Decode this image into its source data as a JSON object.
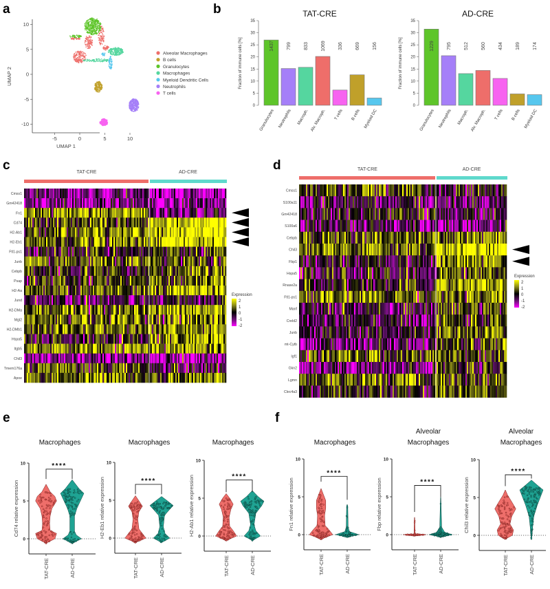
{
  "panel_labels": {
    "a": "a",
    "b": "b",
    "c": "c",
    "d": "d",
    "e": "e",
    "f": "f"
  },
  "chart_data": {
    "umap": {
      "type": "scatter",
      "xlabel": "UMAP 1",
      "ylabel": "UMAP 2",
      "xticks": [
        -5,
        0,
        5,
        10
      ],
      "yticks": [
        10,
        5,
        0,
        -5,
        -10
      ],
      "clusters": [
        {
          "name": "Alveolar Macrophages",
          "color": "#ee6e6a",
          "blobs": [
            [
              0,
              3.5,
              1.3,
              1.2,
              160
            ],
            [
              1.8,
              6.5,
              0.8,
              1.4,
              90
            ],
            [
              4.3,
              7.8,
              0.6,
              2,
              90
            ],
            [
              -0.8,
              7.2,
              1,
              0.3,
              30
            ],
            [
              5.2,
              5.3,
              0.6,
              0.5,
              40
            ]
          ]
        },
        {
          "name": "B cells",
          "color": "#c0a02a",
          "blobs": [
            [
              3.7,
              -2.5,
              0.8,
              1.1,
              160
            ]
          ]
        },
        {
          "name": "Granulocytes",
          "color": "#5ec52a",
          "blobs": [
            [
              2.6,
              9.6,
              1.7,
              1.7,
              360
            ],
            [
              -0.8,
              7.6,
              1.2,
              0.3,
              40
            ]
          ]
        },
        {
          "name": "Macrophages",
          "color": "#55d69f",
          "blobs": [
            [
              7.2,
              4.6,
              1.5,
              0.8,
              200
            ],
            [
              3.5,
              2.8,
              2.8,
              0.3,
              90
            ]
          ]
        },
        {
          "name": "Myeloid Dendritic Cells",
          "color": "#56c7ee",
          "blobs": [
            [
              6.1,
              2.3,
              0.35,
              1.4,
              60
            ],
            [
              4.8,
              4,
              0.5,
              0.3,
              20
            ]
          ]
        },
        {
          "name": "Neutrophils",
          "color": "#a57ff8",
          "blobs": [
            [
              10.8,
              -6.2,
              1.0,
              1.3,
              300
            ]
          ]
        },
        {
          "name": "T cells",
          "color": "#f763f0",
          "blobs": [
            [
              4.8,
              -9.6,
              0.8,
              0.7,
              160
            ]
          ]
        }
      ]
    },
    "bars": [
      {
        "type": "bar",
        "title": "TAT-CRE",
        "ylabel": "Fraction of immune cells [%]",
        "ylim": [
          0,
          35
        ],
        "yticks": [
          0,
          5,
          10,
          15,
          20,
          25,
          30,
          35
        ],
        "categories": [
          "Granulocytes",
          "Neutrophils",
          "Macroph.",
          "Alv. Macroph.",
          "T cells",
          "B cells",
          "Myeloid DC"
        ],
        "values": [
          27.0,
          15.2,
          15.7,
          20.2,
          6.3,
          12.6,
          3.0
        ],
        "counts": [
          "1437",
          "799",
          "833",
          "1069",
          "336",
          "669",
          "156"
        ],
        "colors": [
          "#5ec52a",
          "#a57ff8",
          "#55d69f",
          "#ee6e6a",
          "#f763f0",
          "#c0a02a",
          "#56c7ee"
        ]
      },
      {
        "type": "bar",
        "title": "AD-CRE",
        "ylabel": "Fraction of immune cells [%]",
        "ylim": [
          0,
          35
        ],
        "yticks": [
          0,
          5,
          10,
          15,
          20,
          25,
          30,
          35
        ],
        "categories": [
          "Granulocytes",
          "Neutrophils",
          "Macroph.",
          "Alv. Macroph.",
          "T cells",
          "B cells",
          "Myeloid DC"
        ],
        "values": [
          31.5,
          20.5,
          13.1,
          14.4,
          11.1,
          4.7,
          4.4
        ],
        "counts": [
          "1229",
          "795",
          "512",
          "560",
          "434",
          "189",
          "174"
        ],
        "colors": [
          "#5ec52a",
          "#a57ff8",
          "#55d69f",
          "#ee6e6a",
          "#f763f0",
          "#c0a02a",
          "#56c7ee"
        ]
      }
    ],
    "heatmaps": [
      {
        "type": "heatmap",
        "groups": [
          "TAT-CRE",
          "AD-CRE"
        ],
        "group_colors": [
          "#ee6e6a",
          "#5fd9cc"
        ],
        "legend_title": "Expression",
        "legend_ticks": [
          "2",
          "1",
          "0",
          "-1",
          "-2"
        ],
        "genes": [
          "Cmss1",
          "Gm42418",
          "Fn1",
          "Cd74",
          "H2-Ab1",
          "H2-Eb1",
          "Ftl1-ps1",
          "Junb",
          "Cebpb",
          "Psap",
          "H2-Aa",
          "Jund",
          "H2-DMa",
          "Mgl2",
          "H2-DMb1",
          "Hspa5",
          "Itgb5",
          "Chil3",
          "Tmem176a",
          "Apoe"
        ],
        "mean_expression": [
          [
            -1,
            -1.5
          ],
          [
            -1,
            -1.2
          ],
          [
            1.2,
            -1
          ],
          [
            0.4,
            1.8
          ],
          [
            0.8,
            1.8
          ],
          [
            0.8,
            1.8
          ],
          [
            0,
            0.3
          ],
          [
            0.5,
            0.3
          ],
          [
            0,
            0.8
          ],
          [
            0.3,
            0.8
          ],
          [
            0.6,
            1.5
          ],
          [
            -0.6,
            -0.3
          ],
          [
            0.8,
            1.2
          ],
          [
            0.8,
            0.8
          ],
          [
            0.8,
            1.0
          ],
          [
            -0.3,
            1.2
          ],
          [
            1.0,
            1.0
          ],
          [
            -1.2,
            -1.5
          ],
          [
            0.5,
            -0.5
          ],
          [
            0.8,
            0.8
          ]
        ],
        "highlighted_genes": [
          "Fn1",
          "Cd74",
          "H2-Ab1",
          "H2-Eb1"
        ]
      },
      {
        "type": "heatmap",
        "groups": [
          "TAT-CRE",
          "AD-CRE"
        ],
        "group_colors": [
          "#ee6e6a",
          "#5fd9cc"
        ],
        "legend_title": "Expression",
        "legend_ticks": [
          "2",
          "1",
          "0",
          "-1",
          "-2"
        ],
        "genes": [
          "Cmss1",
          "S100a11",
          "Gm42418",
          "S100a6",
          "Cebpb",
          "Chil3",
          "Fbp1",
          "Hspa5",
          "Rnase2a",
          "Ftl1-ps1",
          "Manf",
          "Creld2",
          "Junb",
          "mt-Cytb",
          "Igf1",
          "Gkn2",
          "Lgmn",
          "Clec4a3"
        ],
        "mean_expression": [
          [
            0.5,
            -0.3
          ],
          [
            -0.5,
            -0.8
          ],
          [
            0,
            -0.6
          ],
          [
            -0.5,
            -1
          ],
          [
            0.6,
            0.8
          ],
          [
            0.8,
            1.8
          ],
          [
            -0.05,
            1.0
          ],
          [
            -0.3,
            0.6
          ],
          [
            0,
            1.2
          ],
          [
            0.8,
            0.6
          ],
          [
            -0.3,
            0.5
          ],
          [
            -0.5,
            0.3
          ],
          [
            -0.3,
            0.5
          ],
          [
            -0.8,
            0.3
          ],
          [
            0.6,
            0.5
          ],
          [
            -0.8,
            0.2
          ],
          [
            0.8,
            0.5
          ],
          [
            0.2,
            0.6
          ]
        ],
        "highlighted_genes": [
          "Chil3",
          "Fbp1"
        ]
      }
    ],
    "violins": [
      {
        "type": "violin",
        "panel": "e",
        "title": [
          "Macrophages"
        ],
        "ylabel": "Cd74 relative expression",
        "groups": [
          "TAT-CRE",
          "AD-CRE"
        ],
        "ylim": [
          -2,
          10
        ],
        "yticks": [
          0,
          5,
          10
        ],
        "significance": "****",
        "bracket": 9.2,
        "bracket_legs": [
          7.9,
          7.9
        ],
        "profiles": [
          [
            [
              -0.6,
              0
            ],
            [
              0,
              0.75
            ],
            [
              0.7,
              0.9
            ],
            [
              1.1,
              0.35
            ],
            [
              2,
              0.3
            ],
            [
              3,
              0.35
            ],
            [
              4,
              0.5
            ],
            [
              5,
              0.9
            ],
            [
              5.6,
              0.75
            ],
            [
              6.2,
              0.35
            ],
            [
              7.2,
              0
            ]
          ],
          [
            [
              -0.6,
              0
            ],
            [
              0,
              0.8
            ],
            [
              0.5,
              0.35
            ],
            [
              1,
              0.2
            ],
            [
              3,
              0.2
            ],
            [
              4,
              0.4
            ],
            [
              5,
              0.7
            ],
            [
              6,
              1
            ],
            [
              6.6,
              0.6
            ],
            [
              7.8,
              0
            ]
          ]
        ]
      },
      {
        "type": "violin",
        "panel": "e",
        "title": [
          "Macrophages"
        ],
        "ylabel": "H2-Eb1 relative expression",
        "groups": [
          "TAT-CRE",
          "AD-CRE"
        ],
        "ylim": [
          -2,
          10
        ],
        "yticks": [
          0,
          5,
          10
        ],
        "significance": "****",
        "bracket": 7.1,
        "bracket_legs": [
          5.8,
          5.8
        ],
        "profiles": [
          [
            [
              -0.6,
              0
            ],
            [
              0,
              0.9
            ],
            [
              0.6,
              0.6
            ],
            [
              1.2,
              0.3
            ],
            [
              2.5,
              0.2
            ],
            [
              3.5,
              0.3
            ],
            [
              4.2,
              0.6
            ],
            [
              4.8,
              0.35
            ],
            [
              5.6,
              0
            ]
          ],
          [
            [
              -0.6,
              0
            ],
            [
              0,
              0.7
            ],
            [
              0.6,
              0.3
            ],
            [
              1.5,
              0.15
            ],
            [
              3,
              0.25
            ],
            [
              3.8,
              0.7
            ],
            [
              4.3,
              1
            ],
            [
              4.8,
              0.6
            ],
            [
              5.5,
              0
            ]
          ]
        ]
      },
      {
        "type": "violin",
        "panel": "e",
        "title": [
          "Macrophages"
        ],
        "ylabel": "H2-Ab1 relative expression",
        "groups": [
          "TAT-CRE",
          "AD-CRE"
        ],
        "ylim": [
          -2,
          10
        ],
        "yticks": [
          0,
          5,
          10
        ],
        "significance": "****",
        "bracket": 7.4,
        "bracket_legs": [
          5.8,
          5.8
        ],
        "profiles": [
          [
            [
              -0.6,
              0
            ],
            [
              0,
              0.9
            ],
            [
              0.7,
              0.6
            ],
            [
              1.3,
              0.3
            ],
            [
              2.5,
              0.25
            ],
            [
              3.5,
              0.4
            ],
            [
              4.2,
              0.6
            ],
            [
              5,
              0.3
            ],
            [
              5.6,
              0
            ]
          ],
          [
            [
              -0.6,
              0
            ],
            [
              0,
              0.7
            ],
            [
              0.7,
              0.3
            ],
            [
              1.5,
              0.15
            ],
            [
              3,
              0.3
            ],
            [
              4,
              0.8
            ],
            [
              4.6,
              1
            ],
            [
              5.2,
              0.5
            ],
            [
              6,
              0
            ]
          ]
        ]
      },
      {
        "type": "violin",
        "panel": "f",
        "title": [
          "Macrophages"
        ],
        "ylabel": "Fn1 relative expression",
        "groups": [
          "TAT-CRE",
          "AD-CRE"
        ],
        "ylim": [
          -2,
          10
        ],
        "yticks": [
          0,
          5,
          10
        ],
        "significance": "****",
        "bracket": 7.7,
        "bracket_legs": [
          7.0,
          4.6
        ],
        "profiles": [
          [
            [
              -0.6,
              0
            ],
            [
              0,
              1
            ],
            [
              0.6,
              0.7
            ],
            [
              1.2,
              0.35
            ],
            [
              2.5,
              0.3
            ],
            [
              3.5,
              0.4
            ],
            [
              4.5,
              0.4
            ],
            [
              5.3,
              0.2
            ],
            [
              6.1,
              0
            ]
          ],
          [
            [
              -0.3,
              0
            ],
            [
              0,
              1
            ],
            [
              0.4,
              0.2
            ],
            [
              1,
              0.08
            ],
            [
              3.8,
              0.05
            ],
            [
              4,
              0
            ]
          ]
        ]
      },
      {
        "type": "violin",
        "panel": "f",
        "title": [
          "Alveolar",
          "Macrophages"
        ],
        "ylabel": "Fbp relative expression",
        "groups": [
          "TAT-CRE",
          "AD-CRE"
        ],
        "ylim": [
          -2,
          10
        ],
        "yticks": [
          0,
          5,
          10
        ],
        "significance": "****",
        "bracket": 6.5,
        "bracket_legs": [
          3.0,
          5.0
        ],
        "profiles": [
          [
            [
              -0.1,
              0
            ],
            [
              0,
              1
            ],
            [
              0.1,
              0.05
            ],
            [
              2.2,
              0.02
            ],
            [
              2.3,
              0
            ]
          ],
          [
            [
              -0.3,
              0
            ],
            [
              0,
              1
            ],
            [
              0.3,
              0.35
            ],
            [
              1,
              0.08
            ],
            [
              4.8,
              0.02
            ],
            [
              5,
              0
            ]
          ]
        ]
      },
      {
        "type": "violin",
        "panel": "f",
        "title": [
          "Alveolar",
          "Macrophages"
        ],
        "ylabel": "Chil3 relative expression",
        "groups": [
          "TAT-CRE",
          "AD-CRE"
        ],
        "ylim": [
          -2,
          10
        ],
        "yticks": [
          0,
          5,
          10
        ],
        "significance": "****",
        "bracket": 8.0,
        "bracket_legs": [
          6.5,
          7.5
        ],
        "profiles": [
          [
            [
              -0.5,
              0
            ],
            [
              0,
              0.6
            ],
            [
              0.7,
              0.7
            ],
            [
              1.5,
              0.4
            ],
            [
              2.5,
              0.55
            ],
            [
              3.5,
              0.9
            ],
            [
              4.3,
              0.6
            ],
            [
              5.3,
              0.2
            ],
            [
              6,
              0
            ]
          ],
          [
            [
              -0.6,
              0
            ],
            [
              0,
              0.05
            ],
            [
              1,
              0.1
            ],
            [
              2.5,
              0.2
            ],
            [
              4,
              0.5
            ],
            [
              5,
              0.75
            ],
            [
              6,
              1
            ],
            [
              6.5,
              0.6
            ],
            [
              7.3,
              0
            ]
          ]
        ]
      }
    ]
  }
}
